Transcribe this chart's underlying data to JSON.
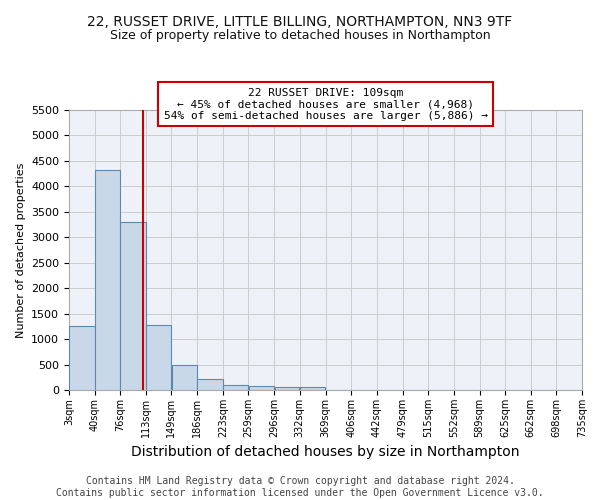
{
  "title_line1": "22, RUSSET DRIVE, LITTLE BILLING, NORTHAMPTON, NN3 9TF",
  "title_line2": "Size of property relative to detached houses in Northampton",
  "xlabel": "Distribution of detached houses by size in Northampton",
  "ylabel": "Number of detached properties",
  "footer_line1": "Contains HM Land Registry data © Crown copyright and database right 2024.",
  "footer_line2": "Contains public sector information licensed under the Open Government Licence v3.0.",
  "annotation_title": "22 RUSSET DRIVE: 109sqm",
  "annotation_line1": "← 45% of detached houses are smaller (4,968)",
  "annotation_line2": "54% of semi-detached houses are larger (5,886) →",
  "property_size": 109,
  "bar_edges": [
    3,
    40,
    76,
    113,
    149,
    186,
    223,
    259,
    296,
    332,
    369,
    406,
    442,
    479,
    515,
    552,
    589,
    625,
    662,
    698,
    735
  ],
  "bar_heights": [
    1260,
    4330,
    3300,
    1270,
    490,
    215,
    90,
    70,
    55,
    50,
    0,
    0,
    0,
    0,
    0,
    0,
    0,
    0,
    0,
    0
  ],
  "bar_color": "#c8d8e8",
  "bar_edge_color": "#5a8ab0",
  "vline_color": "#cc0000",
  "vline_x": 109,
  "annotation_box_edge_color": "#cc0000",
  "ylim_max": 5500,
  "yticks": [
    0,
    500,
    1000,
    1500,
    2000,
    2500,
    3000,
    3500,
    4000,
    4500,
    5000,
    5500
  ],
  "grid_color": "#cccccc",
  "bg_color": "#eef2f8",
  "title1_fontsize": 10,
  "title2_fontsize": 9,
  "xlabel_fontsize": 10,
  "ylabel_fontsize": 8,
  "ytick_fontsize": 8,
  "xtick_fontsize": 7,
  "ann_fontsize": 8,
  "footer_fontsize": 7
}
